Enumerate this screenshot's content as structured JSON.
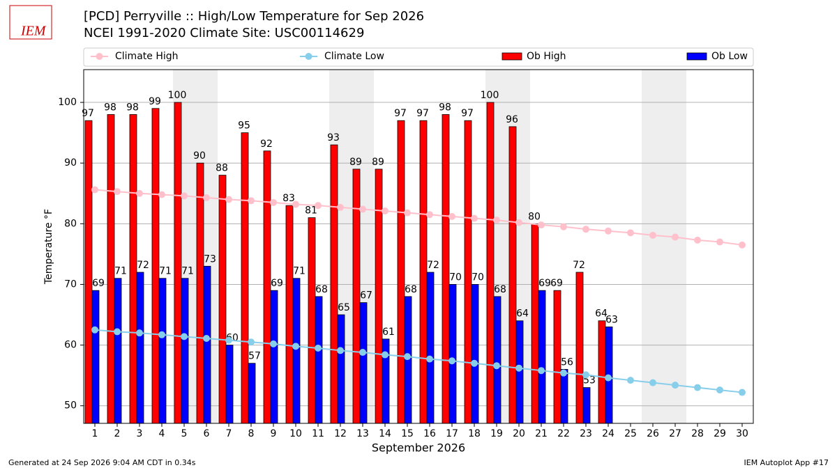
{
  "chart_data": {
    "type": "bar",
    "title": "[PCD] Perryville :: High/Low Temperature for Sep 2026",
    "subtitle": "NCEI 1991-2020 Climate Site: USC00114629",
    "logo": "IEM",
    "x_label": "September 2026",
    "y_label": "Temperature °F",
    "footer_left": "Generated at 24 Sep 2026 9:04 AM CDT in 0.34s",
    "footer_right": "IEM Autoplot App #17",
    "categories": [
      "1",
      "2",
      "3",
      "4",
      "5",
      "6",
      "7",
      "8",
      "9",
      "10",
      "11",
      "12",
      "13",
      "14",
      "15",
      "16",
      "17",
      "18",
      "19",
      "20",
      "21",
      "22",
      "23",
      "24",
      "25",
      "26",
      "27",
      "28",
      "29",
      "30"
    ],
    "shaded_days": [
      5,
      6,
      12,
      13,
      19,
      20,
      26,
      27
    ],
    "series": [
      {
        "name": "Climate High",
        "kind": "line",
        "color": "#ffc0cb",
        "values": [
          85.6,
          85.3,
          85.0,
          84.8,
          84.6,
          84.3,
          84.0,
          83.8,
          83.5,
          83.2,
          83.0,
          82.7,
          82.4,
          82.1,
          81.8,
          81.5,
          81.2,
          80.9,
          80.6,
          80.2,
          79.8,
          79.5,
          79.1,
          78.8,
          78.5,
          78.1,
          77.8,
          77.3,
          77.0,
          76.5
        ]
      },
      {
        "name": "Climate Low",
        "kind": "line",
        "color": "#87ceeb",
        "values": [
          62.5,
          62.2,
          62.0,
          61.7,
          61.4,
          61.1,
          60.8,
          60.5,
          60.2,
          59.8,
          59.5,
          59.1,
          58.8,
          58.4,
          58.1,
          57.7,
          57.4,
          57.0,
          56.6,
          56.2,
          55.8,
          55.4,
          55.1,
          54.6,
          54.2,
          53.8,
          53.4,
          53.0,
          52.6,
          52.2
        ]
      },
      {
        "name": "Ob High",
        "kind": "bar",
        "color": "#ff0000",
        "values": [
          97,
          98,
          98,
          99,
          100,
          90,
          88,
          95,
          92,
          83,
          81,
          93,
          89,
          89,
          97,
          97,
          98,
          97,
          100,
          96,
          80,
          69,
          72,
          64,
          null,
          null,
          null,
          null,
          null,
          null
        ]
      },
      {
        "name": "Ob Low",
        "kind": "bar",
        "color": "#0000ff",
        "values": [
          69,
          71,
          72,
          71,
          71,
          73,
          60,
          57,
          69,
          71,
          68,
          65,
          67,
          61,
          68,
          72,
          70,
          70,
          68,
          64,
          69,
          56,
          53,
          63,
          null,
          null,
          null,
          null,
          null,
          null
        ]
      }
    ],
    "ylim": [
      47.1,
      105.4
    ],
    "yticks": [
      50,
      60,
      70,
      80,
      90,
      100
    ],
    "grid": true
  }
}
